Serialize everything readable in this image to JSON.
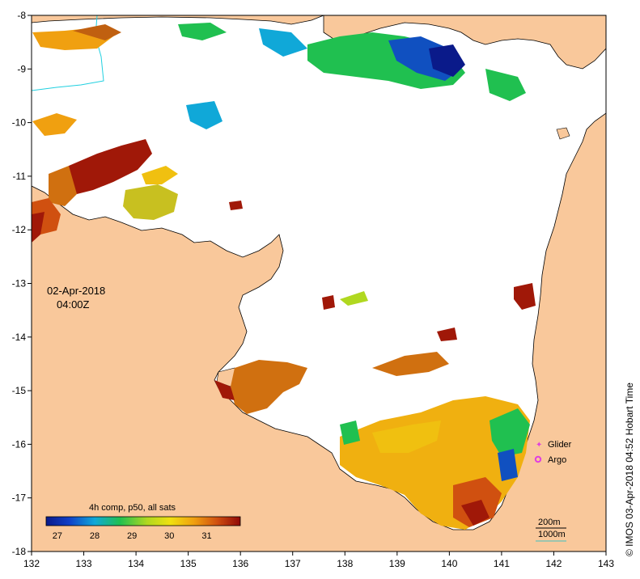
{
  "map": {
    "date_line": "02-Apr-2018",
    "time_line": "04:00Z",
    "credit": "© IMOS 03-Apr-2018 04:52 Hobart Time",
    "x_ticks": [
      "132",
      "133",
      "134",
      "135",
      "136",
      "137",
      "138",
      "139",
      "140",
      "141",
      "142",
      "143"
    ],
    "y_ticks": [
      "-8",
      "-9",
      "-10",
      "-11",
      "-12",
      "-13",
      "-14",
      "-15",
      "-16",
      "-17",
      "-18"
    ],
    "colorbar": {
      "title": "4h comp, p50, all sats",
      "ticks": [
        "27",
        "28",
        "29",
        "30",
        "31"
      ],
      "range": [
        26.7,
        31.9
      ]
    },
    "legend": {
      "glider": "Glider",
      "argo": "Argo",
      "glider_color": "#e040e0",
      "argo_color": "#e040e0"
    },
    "isobaths": {
      "shallow": "200m",
      "deep": "1000m",
      "deep_color": "#40c0c0"
    },
    "colors": {
      "land": "#f9c89b",
      "water": "#ffffff"
    }
  }
}
